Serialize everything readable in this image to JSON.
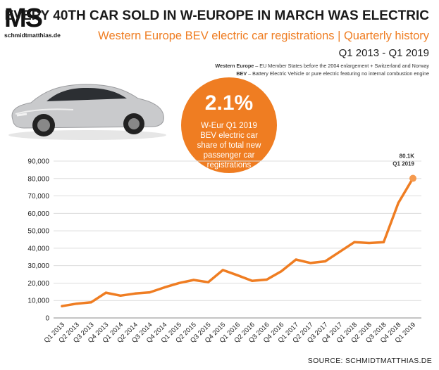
{
  "logo": {
    "mark": "MS",
    "site": "schmidtmatthias.de"
  },
  "header": {
    "title": "EVERY 40TH CAR SOLD IN W-EUROPE IN MARCH WAS ELECTRIC",
    "subtitle": "Western Europe BEV electric car registrations | Quarterly history",
    "period": "Q1 2013 - Q1 2019"
  },
  "definitions": [
    {
      "term": "Western Europe",
      "text": " – EU Member States before the 2004 enlargement + Switzerland and Norway"
    },
    {
      "term": "BEV",
      "text": " – Battery Electric Vehicle or pure electric featuring no internal combustion engine"
    }
  ],
  "badge": {
    "value": "2.1%",
    "lines": [
      "W-Eur Q1 2019",
      "BEV electric car",
      "share of total new",
      "passenger car",
      "registrations"
    ]
  },
  "source": "SOURCE: SCHMIDTMATTHIAS.DE",
  "colors": {
    "accent": "#ef7d22",
    "grid": "#dcdcdc",
    "text": "#1a1a1a"
  },
  "chart_data": {
    "type": "line",
    "title": "",
    "xlabel": "",
    "ylabel": "",
    "ylim": [
      0,
      90000
    ],
    "yticks": [
      0,
      10000,
      20000,
      30000,
      40000,
      50000,
      60000,
      70000,
      80000,
      90000
    ],
    "ytick_labels": [
      "0",
      "10,000",
      "20,000",
      "30,000",
      "40,000",
      "50,000",
      "60,000",
      "70,000",
      "80,000",
      "90,000"
    ],
    "grid": true,
    "legend": "none",
    "categories": [
      "Q1 2013",
      "Q2 2013",
      "Q3 2013",
      "Q4 2013",
      "Q1 2014",
      "Q2 2014",
      "Q3 2014",
      "Q4 2014",
      "Q1 2015",
      "Q2 2015",
      "Q3 2015",
      "Q4 2015",
      "Q1 2016",
      "Q2 2016",
      "Q3 2016",
      "Q4 2016",
      "Q1 2017",
      "Q2 2017",
      "Q3 2017",
      "Q4 2017",
      "Q1 2018",
      "Q2 2018",
      "Q3 2018",
      "Q4 2018",
      "Q1 2019"
    ],
    "series": [
      {
        "values": [
          6800,
          8200,
          9000,
          14500,
          12800,
          14000,
          14700,
          17500,
          20000,
          21800,
          20500,
          27500,
          24500,
          21300,
          22000,
          26800,
          33500,
          31500,
          32500,
          38000,
          43500,
          43000,
          43500,
          66000,
          80100
        ]
      }
    ],
    "annotation": {
      "category": "Q1 2019",
      "value_label": "80.1K",
      "period_label": "Q1 2019"
    }
  }
}
